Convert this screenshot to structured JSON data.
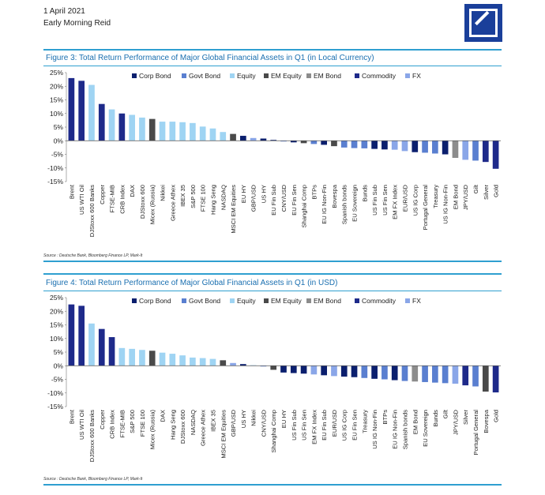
{
  "header": {
    "date": "1 April 2021",
    "author": "Early Morning Reid"
  },
  "colors": {
    "Corp Bond": "#0b1f6e",
    "Govt Bond": "#5a7fd0",
    "Equity": "#9fd4f3",
    "EM Equity": "#4a4a4a",
    "EM Bond": "#8c8c8c",
    "Commodity": "#1e2a8a",
    "FX": "#8aa6e8"
  },
  "legend": [
    "Corp Bond",
    "Govt Bond",
    "Equity",
    "EM Equity",
    "EM Bond",
    "Commodity",
    "FX"
  ],
  "chart_data": [
    {
      "type": "bar",
      "title": "Figure 3: Total Return Performance of Major Global Financial Assets in Q1 (in Local Currency)",
      "source": "Source : Deutsche Bank, Bloomberg Finance LP, Mark-It",
      "ylim": [
        -15,
        25
      ],
      "yticks": [
        "-15%",
        "-10%",
        "-5%",
        "0%",
        "5%",
        "10%",
        "15%",
        "20%",
        "25%"
      ],
      "categories": [
        "Brent",
        "US WTI Oil",
        "DJStoxx 600 Banks",
        "Copper",
        "FTSE-MIB",
        "CRB Index",
        "DAX",
        "DJStoxx 600",
        "Micex (Russia)",
        "Nikkei",
        "Greece Athex",
        "IBEX 35",
        "S&P 500",
        "FTSE 100",
        "Hang Seng",
        "NASDAQ",
        "MSCI EM Equities",
        "EU HY",
        "GBP/USD",
        "US HY",
        "EU Fin Sub",
        "CNY/USD",
        "EU Fin Sen",
        "Shanghai Comp",
        "BTPs",
        "EU IG Non-Fin",
        "Bovespa",
        "Spanish bonds",
        "EU Sovereign",
        "Bunds",
        "US Fin Sub",
        "US Fin Sen",
        "EM FX Index",
        "EUR/USD",
        "US IG Corp",
        "Portugal General",
        "Treasury",
        "US IG Non-Fin",
        "EM Bond",
        "JPY/USD",
        "Gilt",
        "Silver",
        "Gold"
      ],
      "values": [
        23,
        22,
        20.5,
        13.5,
        11.5,
        10,
        9.5,
        8.5,
        8,
        7,
        7,
        6.8,
        6.5,
        5.2,
        4.5,
        3.2,
        2.5,
        1.8,
        1,
        0.8,
        0.3,
        -0.3,
        -0.6,
        -0.9,
        -1.2,
        -1.5,
        -2,
        -2.5,
        -2.7,
        -2.8,
        -3,
        -3.2,
        -3.3,
        -3.8,
        -4.2,
        -4.4,
        -4.7,
        -5,
        -6.3,
        -7,
        -7.3,
        -7.8,
        -10.3
      ],
      "classes": [
        "Commodity",
        "Commodity",
        "Equity",
        "Commodity",
        "Equity",
        "Commodity",
        "Equity",
        "Equity",
        "EM Equity",
        "Equity",
        "Equity",
        "Equity",
        "Equity",
        "Equity",
        "Equity",
        "Equity",
        "EM Equity",
        "Corp Bond",
        "FX",
        "Corp Bond",
        "Corp Bond",
        "FX",
        "Corp Bond",
        "EM Equity",
        "Govt Bond",
        "Corp Bond",
        "EM Equity",
        "Govt Bond",
        "Govt Bond",
        "Govt Bond",
        "Corp Bond",
        "Corp Bond",
        "FX",
        "FX",
        "Corp Bond",
        "Govt Bond",
        "Govt Bond",
        "Corp Bond",
        "EM Bond",
        "FX",
        "Govt Bond",
        "Commodity",
        "Commodity"
      ]
    },
    {
      "type": "bar",
      "title": "Figure 4: Total Return Performance of Major Global Financial Assets in Q1 (in USD)",
      "source": "Source : Deutsche Bank, Bloomberg Finance LP, Mark-It",
      "ylim": [
        -15,
        25
      ],
      "yticks": [
        "-15%",
        "-10%",
        "-5%",
        "0%",
        "5%",
        "10%",
        "15%",
        "20%",
        "25%"
      ],
      "categories": [
        "Brent",
        "US WTI Oil",
        "DJStoxx 600 Banks",
        "Copper",
        "CRB Index",
        "FTSE-MIB",
        "S&P 500",
        "FTSE 100",
        "Micex (Russia)",
        "DAX",
        "Hang Seng",
        "DJStoxx 600",
        "NASDAQ",
        "Greece Athex",
        "IBEX 35",
        "MSCI EM Equities",
        "GBP/USD",
        "US HY",
        "Nikkei",
        "CNY/USD",
        "Shanghai Comp",
        "EU HY",
        "US Fin Sub",
        "US Fin Sen",
        "EM FX Index",
        "EU Fin Sub",
        "EUR/USD",
        "US IG Corp",
        "EU Fin Sen",
        "Treasury",
        "US IG Non-Fin",
        "BTPs",
        "EU IG Non-Fin",
        "Spanish bonds",
        "EM Bond",
        "EU Sovereign",
        "Bunds",
        "Gilt",
        "JPY/USD",
        "Silver",
        "Portugal General",
        "Bovespa",
        "Gold"
      ],
      "values": [
        22.5,
        22,
        15.5,
        13.5,
        10.5,
        6.5,
        6.2,
        5.8,
        5.5,
        4.8,
        4.4,
        3.8,
        3,
        2.8,
        2.5,
        2,
        1,
        0.6,
        0.2,
        -0.3,
        -1.5,
        -2.5,
        -2.7,
        -2.9,
        -3.2,
        -3.5,
        -3.8,
        -4,
        -4.2,
        -4.5,
        -4.8,
        -5,
        -5.3,
        -5.6,
        -5.8,
        -6,
        -6.2,
        -6.4,
        -6.6,
        -7.2,
        -7.6,
        -9.5,
        -9.8
      ],
      "classes": [
        "Commodity",
        "Commodity",
        "Equity",
        "Commodity",
        "Commodity",
        "Equity",
        "Equity",
        "Equity",
        "EM Equity",
        "Equity",
        "Equity",
        "Equity",
        "Equity",
        "Equity",
        "Equity",
        "EM Equity",
        "FX",
        "Corp Bond",
        "Equity",
        "FX",
        "EM Equity",
        "Corp Bond",
        "Corp Bond",
        "Corp Bond",
        "FX",
        "Corp Bond",
        "FX",
        "Corp Bond",
        "Corp Bond",
        "Govt Bond",
        "Corp Bond",
        "Govt Bond",
        "Corp Bond",
        "Govt Bond",
        "EM Bond",
        "Govt Bond",
        "Govt Bond",
        "Govt Bond",
        "FX",
        "Commodity",
        "Govt Bond",
        "EM Equity",
        "Commodity"
      ]
    }
  ]
}
